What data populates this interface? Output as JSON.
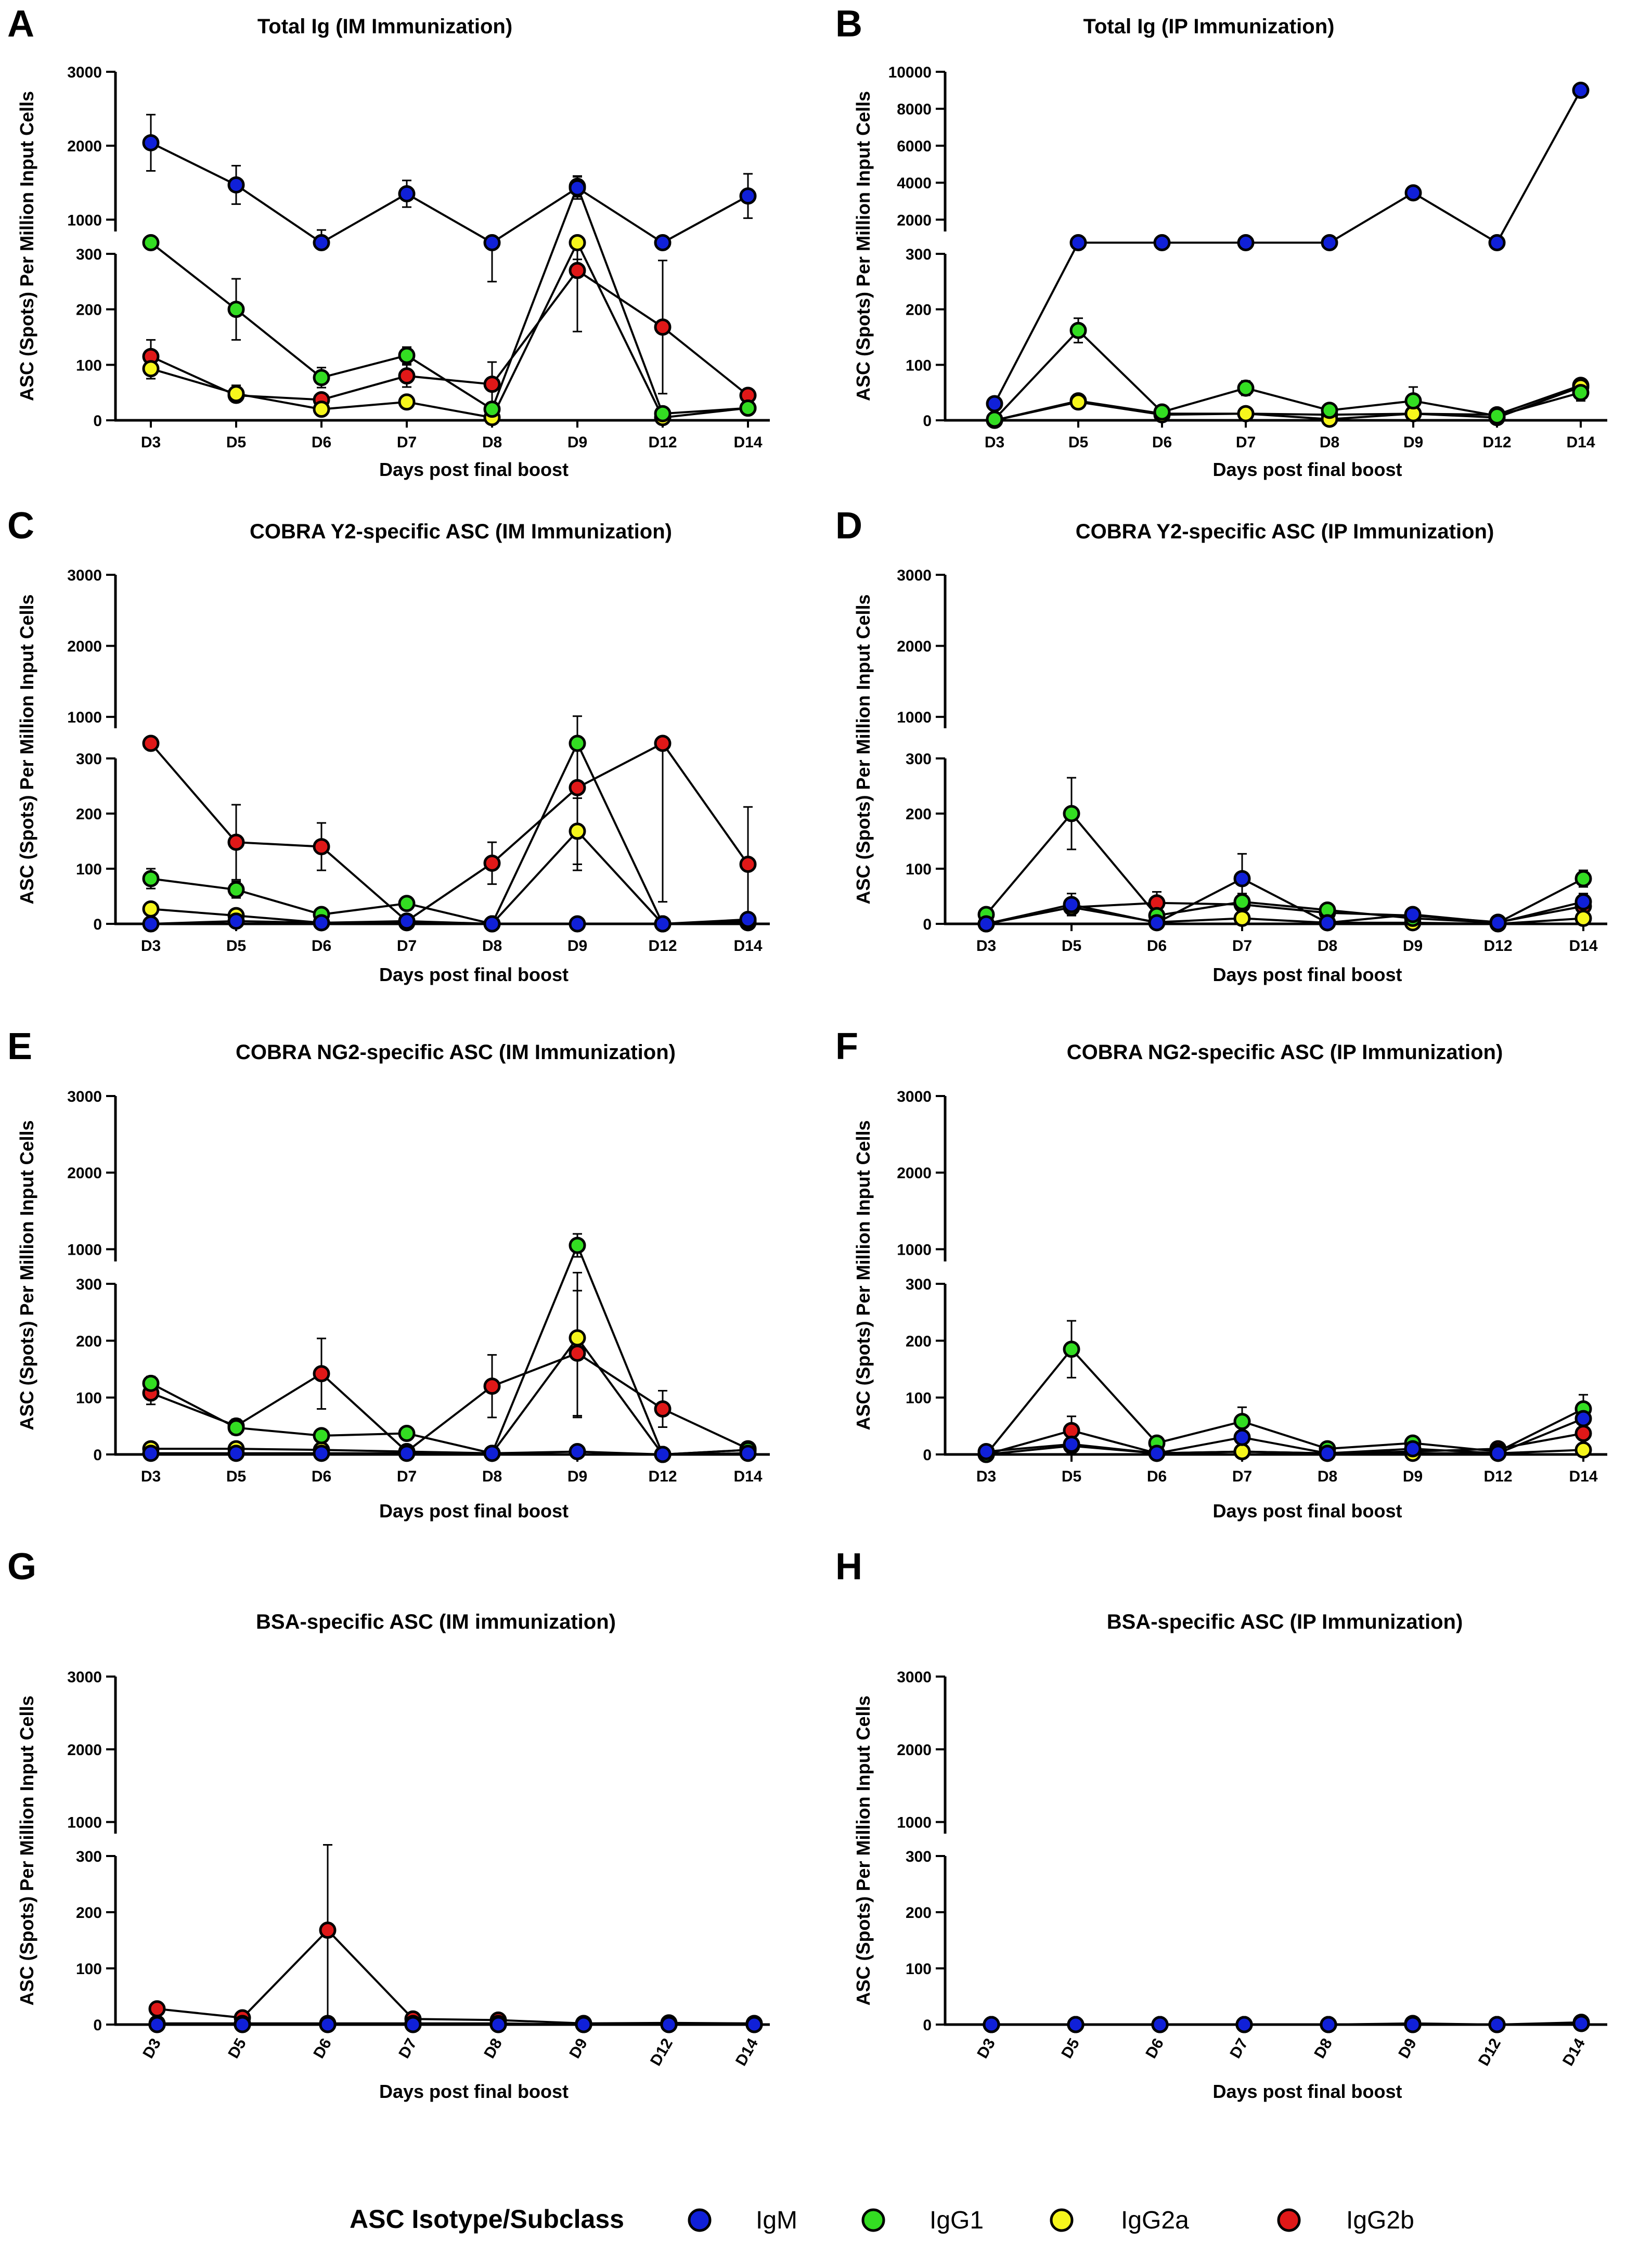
{
  "legend": {
    "title": "ASC Isotype/Subclass",
    "items": [
      {
        "name": "IgM",
        "color": "#1020d8"
      },
      {
        "name": "IgG1",
        "color": "#33dd22"
      },
      {
        "name": "IgG2a",
        "color": "#f6f61c"
      },
      {
        "name": "IgG2b",
        "color": "#e01818"
      }
    ]
  },
  "chart_data": [
    {
      "letter": "A",
      "type": "line",
      "title": "Total Ig (IM Immunization)",
      "xlabel": "Days post final boost",
      "ylabel": "ASC (Spots) Per Million Input Cells",
      "categories": [
        "D3",
        "D5",
        "D6",
        "D7",
        "D8",
        "D9",
        "D12",
        "D14"
      ],
      "lower_ticks": [
        0,
        100,
        200,
        300
      ],
      "upper_ticks": [
        1000,
        2000,
        3000
      ],
      "series": [
        {
          "name": "IgM",
          "values": [
            2040,
            1470,
            700,
            1350,
            350,
            1430,
            430,
            1320
          ],
          "errors": [
            380,
            260,
            160,
            180,
            100,
            150,
            60,
            300
          ]
        },
        {
          "name": "IgG1",
          "values": [
            610,
            200,
            77,
            117,
            20,
            1450,
            12,
            22
          ],
          "errors": [
            190,
            55,
            18,
            15,
            12,
            140,
            4,
            4
          ]
        },
        {
          "name": "IgG2a",
          "values": [
            93,
            48,
            20,
            33,
            5,
            370,
            5,
            22
          ],
          "errors": [
            18,
            15,
            5,
            8,
            3,
            80,
            2,
            4
          ]
        },
        {
          "name": "IgG2b",
          "values": [
            115,
            45,
            37,
            80,
            65,
            270,
            168,
            45
          ],
          "errors": [
            30,
            10,
            10,
            20,
            40,
            110,
            120,
            8
          ]
        }
      ]
    },
    {
      "letter": "B",
      "type": "line",
      "title": "Total Ig (IP Immunization)",
      "xlabel": "Days post final boost",
      "ylabel": "ASC (Spots) Per Million Input Cells",
      "categories": [
        "D3",
        "D5",
        "D6",
        "D7",
        "D8",
        "D9",
        "D12",
        "D14"
      ],
      "lower_ticks": [
        0,
        100,
        200,
        300
      ],
      "upper_ticks": [
        2000,
        4000,
        6000,
        8000,
        10000
      ],
      "series": [
        {
          "name": "IgM",
          "values": [
            30,
            340,
            1000,
            610,
            1000,
            3450,
            460,
            9000
          ],
          "errors": [
            8,
            30,
            50,
            40,
            60,
            300,
            30,
            100
          ]
        },
        {
          "name": "IgG1",
          "values": [
            2,
            162,
            15,
            58,
            18,
            35,
            8,
            50
          ],
          "errors": [
            1,
            22,
            5,
            13,
            5,
            25,
            3,
            15
          ]
        },
        {
          "name": "IgG2a",
          "values": [
            0,
            33,
            10,
            12,
            2,
            12,
            5,
            60
          ],
          "errors": [
            0,
            5,
            3,
            3,
            1,
            4,
            2,
            5
          ]
        },
        {
          "name": "IgG2b",
          "values": [
            0,
            35,
            12,
            12,
            10,
            12,
            10,
            63
          ],
          "errors": [
            0,
            5,
            3,
            3,
            3,
            4,
            3,
            6
          ]
        }
      ]
    },
    {
      "letter": "C",
      "type": "line",
      "title": "COBRA Y2-specific ASC (IM Immunization)",
      "xlabel": "Days post final boost",
      "ylabel": "ASC (Spots) Per Million Input Cells",
      "categories": [
        "D3",
        "D5",
        "D6",
        "D7",
        "D8",
        "D9",
        "D12",
        "D14"
      ],
      "lower_ticks": [
        0,
        100,
        200,
        300
      ],
      "upper_ticks": [
        1000,
        2000,
        3000
      ],
      "series": [
        {
          "name": "IgM",
          "values": [
            0,
            5,
            2,
            5,
            0,
            0,
            0,
            8
          ],
          "errors": [
            0,
            2,
            1,
            2,
            0,
            0,
            0,
            3
          ]
        },
        {
          "name": "IgG1",
          "values": [
            82,
            62,
            17,
            37,
            0,
            760,
            0,
            5
          ],
          "errors": [
            18,
            15,
            5,
            10,
            0,
            250,
            0,
            2
          ]
        },
        {
          "name": "IgG2a",
          "values": [
            27,
            15,
            2,
            2,
            0,
            168,
            0,
            2
          ],
          "errors": [
            8,
            5,
            1,
            1,
            0,
            60,
            0,
            1
          ]
        },
        {
          "name": "IgG2b",
          "values": [
            330,
            148,
            140,
            5,
            110,
            247,
            360,
            108
          ],
          "errors": [
            0,
            68,
            43,
            3,
            38,
            150,
            320,
            104
          ]
        }
      ]
    },
    {
      "letter": "D",
      "type": "line",
      "title": "COBRA Y2-specific ASC (IP Immunization)",
      "xlabel": "Days post final boost",
      "ylabel": "ASC (Spots) Per Million Input Cells",
      "categories": [
        "D3",
        "D5",
        "D6",
        "D7",
        "D8",
        "D9",
        "D12",
        "D14"
      ],
      "lower_ticks": [
        0,
        100,
        200,
        300
      ],
      "upper_ticks": [
        1000,
        2000,
        3000
      ],
      "series": [
        {
          "name": "IgM",
          "values": [
            0,
            35,
            2,
            82,
            2,
            17,
            2,
            40
          ],
          "errors": [
            0,
            20,
            1,
            45,
            1,
            5,
            1,
            15
          ]
        },
        {
          "name": "IgG1",
          "values": [
            17,
            200,
            15,
            40,
            25,
            10,
            2,
            82
          ],
          "errors": [
            5,
            65,
            5,
            15,
            10,
            4,
            1,
            15
          ]
        },
        {
          "name": "IgG2a",
          "values": [
            0,
            30,
            3,
            10,
            2,
            2,
            0,
            10
          ],
          "errors": [
            0,
            10,
            1,
            4,
            1,
            1,
            0,
            3
          ]
        },
        {
          "name": "IgG2b",
          "values": [
            0,
            30,
            38,
            35,
            20,
            15,
            3,
            32
          ],
          "errors": [
            0,
            10,
            20,
            10,
            8,
            5,
            1,
            10
          ]
        }
      ]
    },
    {
      "letter": "E",
      "type": "line",
      "title": "COBRA NG2-specific ASC (IM Immunization)",
      "xlabel": "Days post final boost",
      "ylabel": "ASC (Spots) Per Million Input Cells",
      "categories": [
        "D3",
        "D5",
        "D6",
        "D7",
        "D8",
        "D9",
        "D12",
        "D14"
      ],
      "lower_ticks": [
        0,
        100,
        200,
        300
      ],
      "upper_ticks": [
        1000,
        2000,
        3000
      ],
      "series": [
        {
          "name": "IgM",
          "values": [
            2,
            2,
            2,
            2,
            2,
            5,
            0,
            2
          ],
          "errors": [
            1,
            1,
            1,
            1,
            1,
            2,
            0,
            1
          ]
        },
        {
          "name": "IgG1",
          "values": [
            125,
            47,
            33,
            37,
            2,
            1050,
            0,
            8
          ],
          "errors": [
            12,
            12,
            8,
            6,
            1,
            150,
            0,
            2
          ]
        },
        {
          "name": "IgG2a",
          "values": [
            10,
            10,
            8,
            5,
            2,
            205,
            0,
            8
          ],
          "errors": [
            3,
            3,
            3,
            2,
            1,
            140,
            0,
            2
          ]
        },
        {
          "name": "IgG2b",
          "values": [
            108,
            50,
            142,
            5,
            120,
            178,
            80,
            10
          ],
          "errors": [
            20,
            12,
            62,
            3,
            55,
            110,
            32,
            3
          ]
        }
      ]
    },
    {
      "letter": "F",
      "type": "line",
      "title": "COBRA NG2-specific ASC (IP Immunization)",
      "xlabel": "Days post final boost",
      "ylabel": "ASC (Spots) Per Million Input Cells",
      "categories": [
        "D3",
        "D5",
        "D6",
        "D7",
        "D8",
        "D9",
        "D12",
        "D14"
      ],
      "lower_ticks": [
        0,
        100,
        200,
        300
      ],
      "upper_ticks": [
        1000,
        2000,
        3000
      ],
      "series": [
        {
          "name": "IgM",
          "values": [
            5,
            18,
            2,
            30,
            2,
            10,
            2,
            63
          ],
          "errors": [
            2,
            8,
            1,
            10,
            1,
            4,
            1,
            20
          ]
        },
        {
          "name": "IgG1",
          "values": [
            0,
            185,
            20,
            58,
            10,
            20,
            5,
            80
          ],
          "errors": [
            0,
            50,
            10,
            25,
            4,
            5,
            2,
            25
          ]
        },
        {
          "name": "IgG2a",
          "values": [
            0,
            15,
            2,
            5,
            2,
            2,
            2,
            8
          ],
          "errors": [
            0,
            5,
            1,
            2,
            1,
            1,
            1,
            3
          ]
        },
        {
          "name": "IgG2b",
          "values": [
            0,
            42,
            2,
            5,
            2,
            5,
            10,
            37
          ],
          "errors": [
            0,
            25,
            1,
            2,
            1,
            2,
            4,
            10
          ]
        }
      ]
    },
    {
      "letter": "G",
      "type": "line",
      "title": "BSA-specific ASC (IM immunization)",
      "xlabel": "Days post final boost",
      "ylabel": "ASC (Spots) Per Million Input Cells",
      "categories": [
        "D3",
        "D5",
        "D6",
        "D7",
        "D8",
        "D9",
        "D12",
        "D14"
      ],
      "lower_ticks": [
        0,
        100,
        200,
        300
      ],
      "upper_ticks": [
        1000,
        2000,
        3000
      ],
      "series": [
        {
          "name": "IgM",
          "values": [
            0,
            0,
            0,
            0,
            0,
            0,
            0,
            0
          ],
          "errors": [
            0,
            0,
            0,
            0,
            0,
            0,
            0,
            0
          ]
        },
        {
          "name": "IgG1",
          "values": [
            0,
            0,
            0,
            0,
            0,
            0,
            0,
            0
          ],
          "errors": [
            0,
            0,
            0,
            0,
            0,
            0,
            0,
            0
          ]
        },
        {
          "name": "IgG2a",
          "values": [
            2,
            2,
            2,
            2,
            2,
            0,
            0,
            0
          ],
          "errors": [
            0,
            0,
            0,
            0,
            0,
            0,
            0,
            0
          ]
        },
        {
          "name": "IgG2b",
          "values": [
            28,
            12,
            168,
            10,
            8,
            2,
            3,
            2
          ],
          "errors": [
            0,
            0,
            165,
            3,
            3,
            1,
            1,
            1
          ]
        }
      ]
    },
    {
      "letter": "H",
      "type": "line",
      "title": "BSA-specific ASC (IP Immunization)",
      "xlabel": "Days post final boost",
      "ylabel": "ASC (Spots) Per Million Input Cells",
      "categories": [
        "D3",
        "D5",
        "D6",
        "D7",
        "D8",
        "D9",
        "D12",
        "D14"
      ],
      "lower_ticks": [
        0,
        100,
        200,
        300
      ],
      "upper_ticks": [
        1000,
        2000,
        3000
      ],
      "series": [
        {
          "name": "IgM",
          "values": [
            0,
            0,
            0,
            0,
            0,
            0,
            0,
            2
          ],
          "errors": [
            0,
            0,
            0,
            0,
            0,
            0,
            0,
            0
          ]
        },
        {
          "name": "IgG1",
          "values": [
            0,
            0,
            0,
            0,
            0,
            0,
            0,
            2
          ],
          "errors": [
            0,
            0,
            0,
            0,
            0,
            0,
            0,
            0
          ]
        },
        {
          "name": "IgG2a",
          "values": [
            0,
            0,
            0,
            0,
            0,
            0,
            0,
            2
          ],
          "errors": [
            0,
            0,
            0,
            0,
            0,
            0,
            0,
            0
          ]
        },
        {
          "name": "IgG2b",
          "values": [
            0,
            0,
            0,
            0,
            0,
            2,
            0,
            4
          ],
          "errors": [
            0,
            0,
            0,
            0,
            0,
            1,
            0,
            1
          ]
        }
      ]
    }
  ]
}
